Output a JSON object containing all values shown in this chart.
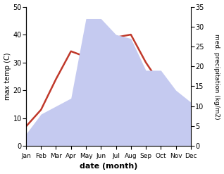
{
  "months": [
    "Jan",
    "Feb",
    "Mar",
    "Apr",
    "May",
    "Jun",
    "Jul",
    "Aug",
    "Sep",
    "Oct",
    "Nov",
    "Dec"
  ],
  "temperature": [
    7,
    13,
    24,
    34,
    32,
    38,
    39,
    40,
    30,
    22,
    15,
    7
  ],
  "precipitation": [
    3,
    8,
    10,
    12,
    32,
    32,
    28,
    27,
    19,
    19,
    14,
    11
  ],
  "temp_color": "#c0392b",
  "precip_color_fill": "#c5caf0",
  "temp_ylim": [
    0,
    50
  ],
  "precip_ylim": [
    0,
    35
  ],
  "temp_yticks": [
    0,
    10,
    20,
    30,
    40,
    50
  ],
  "precip_yticks": [
    0,
    5,
    10,
    15,
    20,
    25,
    30,
    35
  ],
  "xlabel": "date (month)",
  "ylabel_left": "max temp (C)",
  "ylabel_right": "med. precipitation (kg/m2)",
  "bg_color": "#ffffff",
  "line_width": 1.8
}
